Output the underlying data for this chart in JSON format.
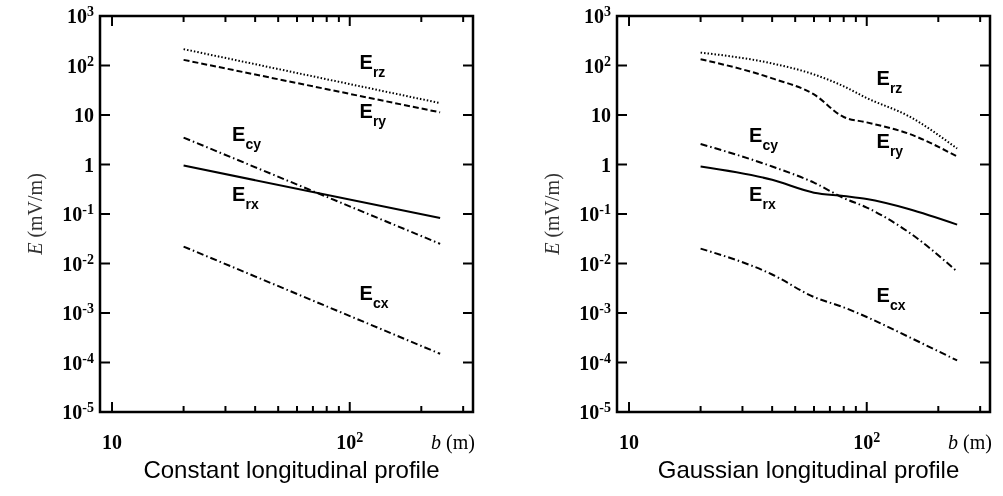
{
  "chart_data": [
    {
      "type": "line",
      "title": "Constant longitudinal profile",
      "xlabel": "b (m)",
      "ylabel": "E (mV/m)",
      "log": "xy",
      "xlim": [
        8.9,
        330
      ],
      "ylim": [
        1e-05,
        1000
      ],
      "xticks": [
        {
          "value": 10,
          "label": "10"
        },
        {
          "value": 20,
          "label": null
        },
        {
          "value": 30,
          "label": null
        },
        {
          "value": 40,
          "label": null
        },
        {
          "value": 50,
          "label": null
        },
        {
          "value": 60,
          "label": null
        },
        {
          "value": 70,
          "label": null
        },
        {
          "value": 80,
          "label": null
        },
        {
          "value": 90,
          "label": null
        },
        {
          "value": 100,
          "label": "10$^{2}$"
        },
        {
          "value": 200,
          "label": null
        },
        {
          "value": 300,
          "label": null
        }
      ],
      "yticks": [
        {
          "value": 1e-05,
          "label": "10$^{-5}$"
        },
        {
          "value": 0.0001,
          "label": "10$^{-4}$"
        },
        {
          "value": 0.001,
          "label": "10$^{-3}$"
        },
        {
          "value": 0.01,
          "label": "10$^{-2}$"
        },
        {
          "value": 0.1,
          "label": "10$^{-1}$"
        },
        {
          "value": 1,
          "label": "1"
        },
        {
          "value": 10,
          "label": "10"
        },
        {
          "value": 100,
          "label": "10$^{2}$"
        },
        {
          "value": 1000,
          "label": "10$^{3}$"
        }
      ],
      "x": [
        20,
        240
      ],
      "series": [
        {
          "name": "E$_{rz}$",
          "color": "#000000",
          "line_style": "dotted",
          "values": [
            214,
            17.4
          ]
        },
        {
          "name": "E$_{ry}$",
          "color": "#000000",
          "line_style": "dashed",
          "values": [
            130,
            11.3
          ]
        },
        {
          "name": "E$_{cy}$",
          "color": "#000000",
          "line_style": "dashdot",
          "values": [
            3.5,
            0.025
          ]
        },
        {
          "name": "E$_{rx}$",
          "color": "#000000",
          "line_style": "solid",
          "values": [
            0.95,
            0.083
          ]
        },
        {
          "name": "E$_{cx}$",
          "color": "#000000",
          "line_style": "dashdot",
          "values": [
            0.022,
            0.00015
          ]
        }
      ]
    },
    {
      "type": "line",
      "title": "Gaussian longitudinal profile",
      "xlabel": "b (m)",
      "ylabel": "E (mV/m)",
      "log": "xy",
      "xlim": [
        8.9,
        330
      ],
      "ylim": [
        1e-05,
        1000
      ],
      "xticks": [
        {
          "value": 10,
          "label": "10"
        },
        {
          "value": 20,
          "label": null
        },
        {
          "value": 30,
          "label": null
        },
        {
          "value": 40,
          "label": null
        },
        {
          "value": 50,
          "label": null
        },
        {
          "value": 60,
          "label": null
        },
        {
          "value": 70,
          "label": null
        },
        {
          "value": 80,
          "label": null
        },
        {
          "value": 90,
          "label": null
        },
        {
          "value": 100,
          "label": "10$^{2}$"
        },
        {
          "value": 200,
          "label": null
        },
        {
          "value": 300,
          "label": null
        }
      ],
      "yticks": [
        {
          "value": 1e-05,
          "label": "10$^{-5}$"
        },
        {
          "value": 0.0001,
          "label": "10$^{-4}$"
        },
        {
          "value": 0.001,
          "label": "10$^{-3}$"
        },
        {
          "value": 0.01,
          "label": "10$^{-2}$"
        },
        {
          "value": 0.1,
          "label": "10$^{-1}$"
        },
        {
          "value": 1,
          "label": "1"
        },
        {
          "value": 10,
          "label": "10"
        },
        {
          "value": 100,
          "label": "10$^{2}$"
        },
        {
          "value": 1000,
          "label": "10$^{3}$"
        }
      ],
      "x": [
        20,
        40,
        60,
        80,
        100,
        150,
        240
      ],
      "series": [
        {
          "name": "E$_{rz}$",
          "color": "#000000",
          "line_style": "dotted",
          "values": [
            182,
            110,
            66,
            38,
            22,
            9.5,
            2.1
          ]
        },
        {
          "name": "E$_{ry}$",
          "color": "#000000",
          "line_style": "dashed",
          "values": [
            134,
            55,
            26,
            9.1,
            7.1,
            4.2,
            1.45
          ]
        },
        {
          "name": "E$_{cy}$",
          "color": "#000000",
          "line_style": "dashdot",
          "values": [
            2.6,
            0.91,
            0.43,
            0.21,
            0.135,
            0.043,
            0.0069
          ]
        },
        {
          "name": "E$_{rx}$",
          "color": "#000000",
          "line_style": "solid",
          "values": [
            0.91,
            0.49,
            0.27,
            0.23,
            0.2,
            0.126,
            0.061
          ]
        },
        {
          "name": "E$_{cx}$",
          "color": "#000000",
          "line_style": "dashdot",
          "values": [
            0.02,
            0.006,
            0.0021,
            0.0013,
            0.00083,
            0.00033,
            0.00011
          ]
        }
      ]
    }
  ]
}
